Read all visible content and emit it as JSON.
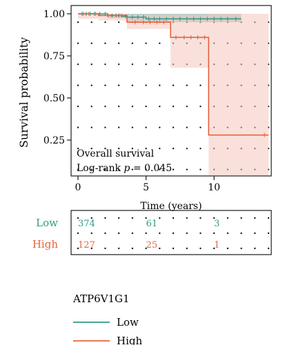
{
  "chart_data": {
    "type": "line",
    "subtype": "kaplan-meier",
    "ylabel": "Survival probability",
    "xlabel": "Time (years)",
    "xlim": [
      0,
      14
    ],
    "ylim": [
      0.0,
      1.0
    ],
    "x_ticks": [
      0,
      5,
      10
    ],
    "y_ticks": [
      0.25,
      0.5,
      0.75,
      1.0
    ],
    "y_tick_labels": [
      "0.25",
      "0.50",
      "0.75",
      "1.00"
    ],
    "grid": "dotted",
    "annotation": {
      "line1": "Overall survival",
      "line2_prefix": "Log-rank ",
      "line2_italic": "p",
      "line2_suffix": " = 0.045"
    },
    "series": [
      {
        "name": "Low",
        "color": "#2e9c86",
        "ci_color": "#8aa89f",
        "steps": [
          [
            0,
            1.0
          ],
          [
            2.2,
            0.99
          ],
          [
            3.2,
            0.985
          ],
          [
            3.6,
            0.98
          ],
          [
            5,
            0.97
          ],
          [
            12,
            0.97
          ]
        ],
        "ci": [
          [
            0,
            1.0,
            1.0
          ],
          [
            2.2,
            0.975,
            1.0
          ],
          [
            3.6,
            0.95,
            1.0
          ],
          [
            12,
            0.95,
            1.0
          ]
        ],
        "censor_x": [
          0.3,
          0.6,
          0.9,
          1.2,
          1.6,
          2.0,
          2.5,
          3.0,
          3.5,
          4.0,
          4.4,
          4.8,
          5.2,
          5.6,
          6.0,
          6.5,
          7.0,
          7.5,
          8.0,
          8.5,
          9.0,
          9.5,
          10.0,
          10.5,
          11.0,
          11.6
        ]
      },
      {
        "name": "High",
        "color": "#e8623e",
        "ci_color": "#f6c7bd",
        "steps": [
          [
            0,
            1.0
          ],
          [
            1.5,
            0.99
          ],
          [
            3.6,
            0.95
          ],
          [
            6.8,
            0.86
          ],
          [
            9.6,
            0.28
          ],
          [
            14,
            0.28
          ]
        ],
        "ci": [
          [
            0,
            0.97,
            1.0
          ],
          [
            1.5,
            0.96,
            1.0
          ],
          [
            3.6,
            0.91,
            0.99
          ],
          [
            6.8,
            0.68,
            0.99
          ],
          [
            9.6,
            0.04,
            1.0
          ],
          [
            14,
            0.04,
            1.0
          ]
        ],
        "censor_x": [
          0.4,
          0.8,
          1.3,
          2.2,
          2.8,
          3.2,
          4.2,
          4.8,
          5.3,
          5.8,
          6.3,
          7.2,
          7.8,
          8.3,
          8.8,
          9.3,
          13.7
        ]
      }
    ],
    "risk_table": {
      "times": [
        0,
        5,
        10
      ],
      "rows": [
        {
          "label": "Low",
          "color": "#2e9c86",
          "counts": [
            "374",
            "61",
            "3"
          ]
        },
        {
          "label": "High",
          "color": "#e8623e",
          "counts": [
            "127",
            "25",
            "1"
          ]
        }
      ]
    },
    "legend": {
      "title": "ATP6V1G1",
      "placement": "bottom-left",
      "items": [
        {
          "label": "Low",
          "color": "#2e9c86"
        },
        {
          "label": "High",
          "color": "#e8623e"
        }
      ]
    }
  }
}
